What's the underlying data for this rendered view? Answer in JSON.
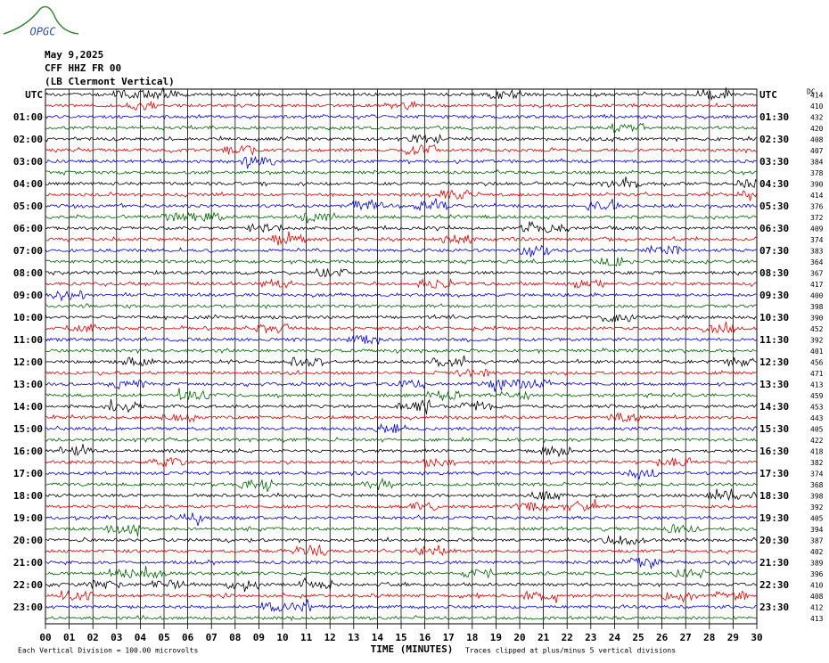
{
  "header": {
    "logo": "OPGC",
    "date": "May 9,2025",
    "station": "CFF HHZ FR 00",
    "location": "(LB Clermont Vertical)"
  },
  "left_labels": [
    "UTC",
    "01:00",
    "02:00",
    "03:00",
    "04:00",
    "05:00",
    "06:00",
    "07:00",
    "08:00",
    "09:00",
    "10:00",
    "11:00",
    "12:00",
    "13:00",
    "14:00",
    "15:00",
    "16:00",
    "17:00",
    "18:00",
    "19:00",
    "20:00",
    "21:00",
    "22:00",
    "23:00"
  ],
  "right_labels": [
    "UTC",
    "01:30",
    "02:30",
    "03:30",
    "04:30",
    "05:30",
    "06:30",
    "07:30",
    "08:30",
    "09:30",
    "10:30",
    "11:30",
    "12:30",
    "13:30",
    "14:30",
    "15:30",
    "16:30",
    "17:30",
    "18:30",
    "19:30",
    "20:30",
    "21:30",
    "22:30",
    "23:30"
  ],
  "dc_header": "DC",
  "dc_values": [
    414,
    410,
    432,
    420,
    408,
    407,
    384,
    378,
    390,
    414,
    376,
    372,
    409,
    374,
    383,
    364,
    367,
    417,
    400,
    398,
    390,
    452,
    392,
    401,
    456,
    471,
    413,
    459,
    453,
    443,
    405,
    422,
    418,
    382,
    374,
    368,
    398,
    392,
    405,
    394,
    387,
    402,
    389,
    396,
    410,
    408,
    412,
    413
  ],
  "trace_colors": [
    "#000000",
    "#e00000",
    "#0000e0",
    "#006400"
  ],
  "x_labels": [
    "00",
    "01",
    "02",
    "03",
    "04",
    "05",
    "06",
    "07",
    "08",
    "09",
    "10",
    "11",
    "12",
    "13",
    "14",
    "15",
    "16",
    "17",
    "18",
    "19",
    "20",
    "21",
    "22",
    "23",
    "24",
    "25",
    "26",
    "27",
    "28",
    "29",
    "30"
  ],
  "footer": {
    "scale": "Each Vertical Division =  100.00 microvolts",
    "axis_title": "TIME (MINUTES)",
    "clip": "Traces clipped at plus/minus 5 vertical divisions"
  }
}
